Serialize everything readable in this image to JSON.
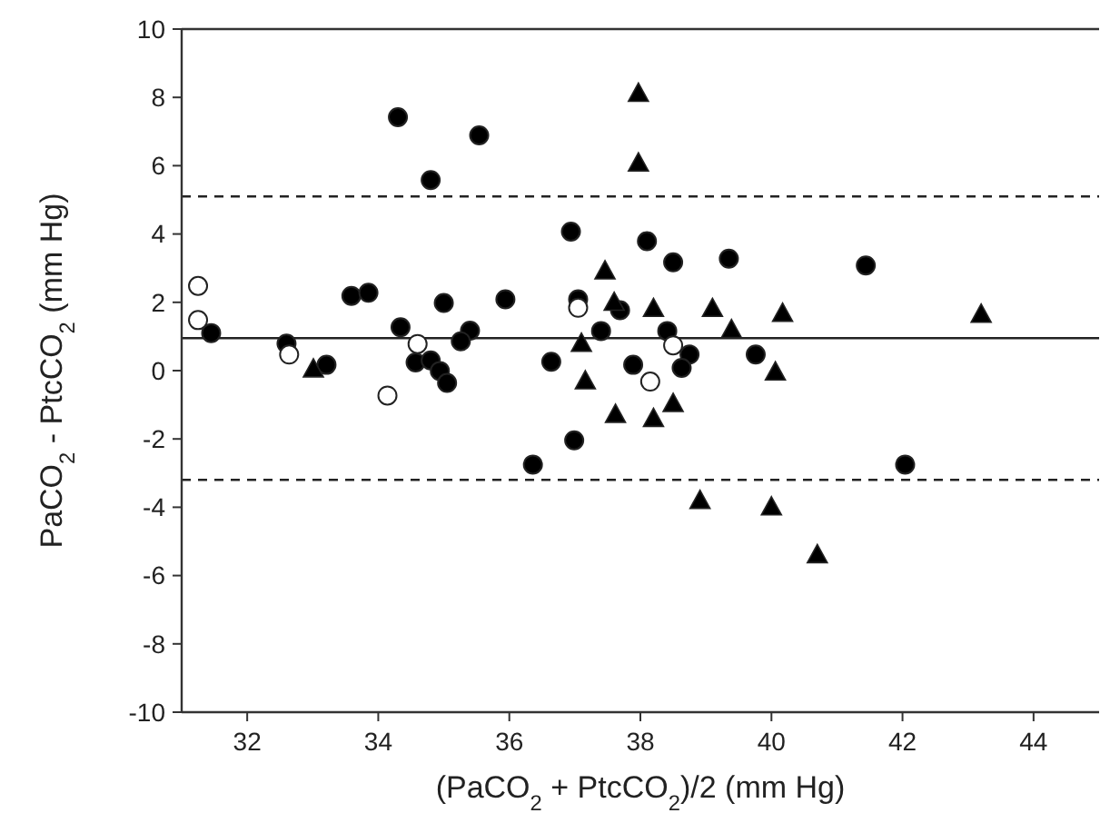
{
  "chart_data": {
    "type": "scatter",
    "xlabel": "(PaCO$_{2}$ + PtcCO$_{2}$)/2 (mm Hg)",
    "ylabel": "PaCO$_{2}$ - PtcCO$_{2}$ (mm Hg)",
    "xlim": [
      31,
      45
    ],
    "xticks": [
      32,
      34,
      36,
      38,
      40,
      42,
      44
    ],
    "ylim": [
      -10,
      10
    ],
    "yticks": [
      -10,
      -8,
      -6,
      -4,
      -2,
      0,
      2,
      4,
      6,
      8,
      10
    ],
    "grid": false,
    "ref_lines": [
      {
        "axis": "y",
        "value": 0.95,
        "line_style": "solid"
      },
      {
        "axis": "y",
        "value": 5.1,
        "line_style": "dashed"
      },
      {
        "axis": "y",
        "value": -3.2,
        "line_style": "dashed"
      }
    ],
    "series": [
      {
        "color": "#000000",
        "marker": "circle",
        "x": [
          34.3,
          35.54,
          34.8,
          36.94,
          33.59,
          33.85,
          35.0,
          35.94,
          37.05,
          37.69,
          31.45,
          32.6,
          34.34,
          35.4,
          35.26,
          37.4,
          36.64,
          37.89,
          33.21,
          38.1,
          38.5,
          39.35,
          41.44,
          38.41,
          38.75,
          38.63,
          39.76,
          34.57,
          34.8,
          34.94,
          35.05,
          36.99,
          36.36,
          42.04
        ],
        "values": [
          7.42,
          6.89,
          5.58,
          4.07,
          2.19,
          2.28,
          1.98,
          2.09,
          2.09,
          1.77,
          1.1,
          0.79,
          1.27,
          1.17,
          0.86,
          1.16,
          0.26,
          0.17,
          0.17,
          3.79,
          3.17,
          3.28,
          3.08,
          1.16,
          0.47,
          0.08,
          0.47,
          0.24,
          0.3,
          -0.01,
          -0.36,
          -2.04,
          -2.75,
          -2.75
        ]
      },
      {
        "color": "#ffffff",
        "marker": "circle",
        "x": [
          31.25,
          31.25,
          32.64,
          34.6,
          37.05,
          38.5,
          34.14,
          38.15
        ],
        "values": [
          2.48,
          1.48,
          0.47,
          0.78,
          1.84,
          0.74,
          -0.73,
          -0.32
        ]
      },
      {
        "color": "#000000",
        "marker": "triangle",
        "x": [
          37.97,
          37.97,
          37.46,
          37.6,
          38.2,
          39.1,
          40.17,
          43.2,
          39.39,
          37.1,
          33.01,
          40.06,
          37.16,
          37.62,
          38.2,
          38.5,
          38.91,
          40.0,
          40.7
        ],
        "values": [
          8.1,
          6.06,
          2.9,
          1.98,
          1.8,
          1.8,
          1.66,
          1.63,
          1.18,
          0.78,
          0.03,
          -0.06,
          -0.32,
          -1.3,
          -1.42,
          -0.98,
          -3.82,
          -4.01,
          -5.41
        ]
      }
    ]
  }
}
